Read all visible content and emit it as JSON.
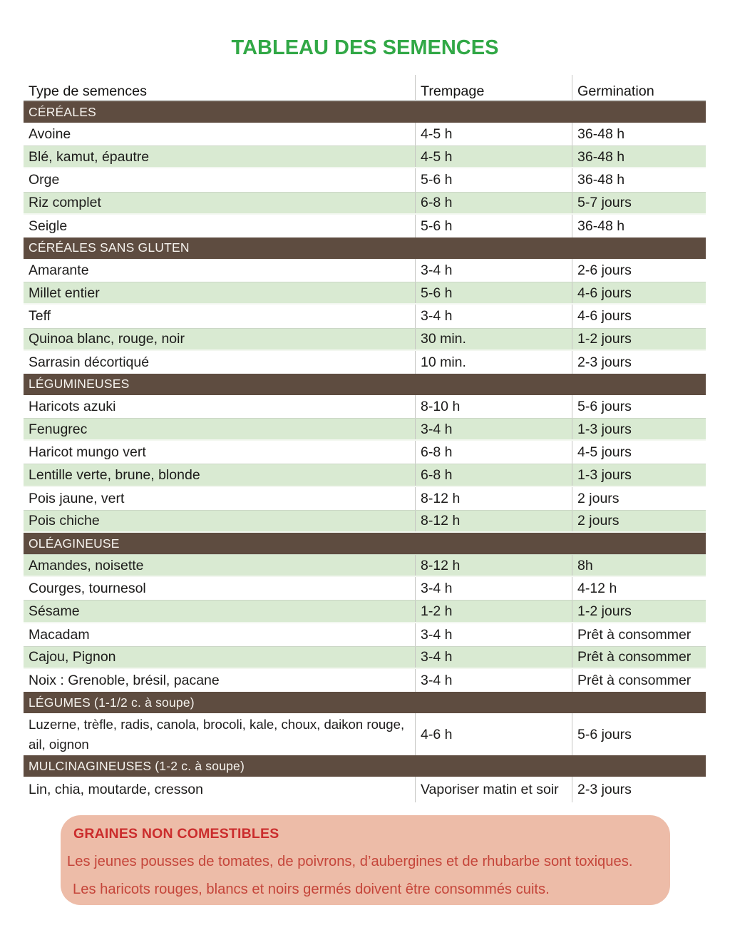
{
  "page": {
    "title": "TABLEAU DES SEMENCES"
  },
  "colors": {
    "title_green": "#31A846",
    "section_bar_brown": "#5E4C40",
    "shaded_row_green": "#D9EAD2",
    "warning_box_pink": "#EDBCA8",
    "warning_title_red": "#CB2D2D",
    "warning_body_red": "#C5453A",
    "text_ink": "#1D1C1B",
    "grid_gray": "#C6C6C3"
  },
  "table": {
    "headers": [
      "Type de semences",
      "Trempage",
      "Germination"
    ],
    "sections": [
      {
        "label": "CÉRÉALES",
        "rows": [
          {
            "name": "Avoine",
            "trempage": "4-5 h",
            "germination": "36-48 h",
            "shaded": false
          },
          {
            "name": "Blé, kamut, épautre",
            "trempage": "4-5 h",
            "germination": "36-48 h",
            "shaded": true
          },
          {
            "name": "Orge",
            "trempage": "5-6 h",
            "germination": "36-48 h",
            "shaded": false
          },
          {
            "name": "Riz complet",
            "trempage": "6-8 h",
            "germination": "5-7 jours",
            "shaded": true
          },
          {
            "name": "Seigle",
            "trempage": "5-6 h",
            "germination": "36-48 h",
            "shaded": false
          }
        ]
      },
      {
        "label": "CÉRÉALES SANS GLUTEN",
        "rows": [
          {
            "name": "Amarante",
            "trempage": "3-4 h",
            "germination": "2-6 jours",
            "shaded": false
          },
          {
            "name": "Millet entier",
            "trempage": "5-6 h",
            "germination": "4-6 jours",
            "shaded": true
          },
          {
            "name": "Teff",
            "trempage": "3-4 h",
            "germination": "4-6 jours",
            "shaded": false
          },
          {
            "name": "Quinoa blanc, rouge, noir",
            "trempage": "30 min.",
            "germination": "1-2 jours",
            "shaded": true
          },
          {
            "name": "Sarrasin décortiqué",
            "trempage": "10 min.",
            "germination": "2-3 jours",
            "shaded": false
          }
        ]
      },
      {
        "label": "LÉGUMINEUSES",
        "rows": [
          {
            "name": "Haricots azuki",
            "trempage": "8-10 h",
            "germination": "5-6 jours",
            "shaded": false
          },
          {
            "name": "Fenugrec",
            "trempage": "3-4 h",
            "germination": "1-3 jours",
            "shaded": true
          },
          {
            "name": "Haricot mungo vert",
            "trempage": "6-8 h",
            "germination": "4-5 jours",
            "shaded": false
          },
          {
            "name": "Lentille verte, brune, blonde",
            "trempage": "6-8 h",
            "germination": "1-3 jours",
            "shaded": true
          },
          {
            "name": "Pois jaune, vert",
            "trempage": "8-12 h",
            "germination": "2 jours",
            "shaded": false
          },
          {
            "name": "Pois chiche",
            "trempage": "8-12 h",
            "germination": "2 jours",
            "shaded": true
          }
        ]
      },
      {
        "label": "OLÉAGINEUSE",
        "rows": [
          {
            "name": "Amandes, noisette",
            "trempage": "8-12 h",
            "germination": "8h",
            "shaded": true
          },
          {
            "name": "Courges, tournesol",
            "trempage": "3-4 h",
            "germination": "4-12 h",
            "shaded": false
          },
          {
            "name": "Sésame",
            "trempage": "1-2 h",
            "germination": "1-2 jours",
            "shaded": true
          },
          {
            "name": "Macadam",
            "trempage": "3-4 h",
            "germination": "Prêt à consommer",
            "shaded": false
          },
          {
            "name": "Cajou, Pignon",
            "trempage": "3-4 h",
            "germination": "Prêt à consommer",
            "shaded": true
          },
          {
            "name": "Noix : Grenoble, brésil, pacane",
            "trempage": "3-4 h",
            "germination": "Prêt à consommer",
            "shaded": false
          }
        ]
      },
      {
        "label": "LÉGUMES (1-1/2 c. à soupe)",
        "rows": [
          {
            "name": "Luzerne, trèfle, radis, canola, brocoli, kale, choux, daikon rouge,\nail, oignon",
            "trempage": "4-6 h",
            "germination": "5-6 jours",
            "shaded": false,
            "multiline": true
          }
        ]
      },
      {
        "label": "MULCINAGINEUSES (1-2 c. à soupe)",
        "rows": [
          {
            "name": "Lin, chia, moutarde, cresson",
            "trempage": "Vaporiser matin et soir",
            "germination": "2-3 jours",
            "shaded": false,
            "last": true
          }
        ]
      }
    ]
  },
  "warning": {
    "title": "GRAINES NON COMESTIBLES",
    "lines": [
      "Les jeunes pousses de tomates, de poivrons, d’aubergines et de rhubarbe sont toxiques.",
      "Les haricots rouges, blancs et noirs germés doivent être consommés cuits."
    ]
  }
}
